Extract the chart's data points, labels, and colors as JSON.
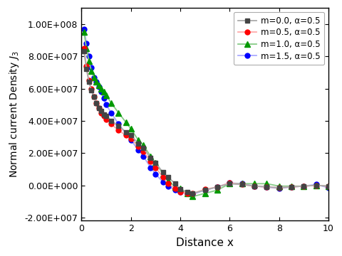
{
  "title": "",
  "xlabel": "Distance x",
  "ylabel": "Normal current Density $J_3$",
  "xlim": [
    0,
    10
  ],
  "ylim": [
    -22000000.0,
    110000000.0
  ],
  "yticks": [
    -20000000.0,
    0.0,
    20000000.0,
    40000000.0,
    60000000.0,
    80000000.0,
    100000000.0
  ],
  "xticks": [
    0,
    2,
    4,
    6,
    8,
    10
  ],
  "legend": [
    {
      "label": "m=0.0, α=0.5",
      "color": "#aaaaaa",
      "marker": "s",
      "mcolor": "#444444"
    },
    {
      "label": "m=0.5, α=0.5",
      "color": "#ffaaaa",
      "marker": "o",
      "mcolor": "#ff0000"
    },
    {
      "label": "m=1.0, α=0.5",
      "color": "#88cc88",
      "marker": "^",
      "mcolor": "#009900"
    },
    {
      "label": "m=1.5, α=0.5",
      "color": "#aaaaff",
      "marker": "o",
      "mcolor": "#0000ff"
    }
  ],
  "series": {
    "m00": {
      "x": [
        0.1,
        0.2,
        0.3,
        0.4,
        0.5,
        0.6,
        0.7,
        0.8,
        0.9,
        1.0,
        1.2,
        1.5,
        1.8,
        2.0,
        2.3,
        2.5,
        2.8,
        3.0,
        3.3,
        3.5,
        3.8,
        4.0,
        4.3,
        4.5,
        5.0,
        5.5,
        6.0,
        6.5,
        7.0,
        7.5,
        8.0,
        8.5,
        9.0,
        9.5,
        10.0
      ],
      "y": [
        83000000.0,
        72000000.0,
        64000000.0,
        59000000.0,
        55000000.0,
        51000000.0,
        48000000.0,
        46000000.0,
        44000000.0,
        43000000.0,
        40000000.0,
        37000000.0,
        33000000.0,
        31000000.0,
        26000000.0,
        23000000.0,
        17000000.0,
        14000000.0,
        8000000.0,
        5000000.0,
        1000000.0,
        -2500000.0,
        -4000000.0,
        -5000000.0,
        -3000000.0,
        -1000000.0,
        1000000.0,
        500000.0,
        -500000.0,
        -1000000.0,
        -1500000.0,
        -1000000.0,
        -500000.0,
        0,
        -500000.0
      ]
    },
    "m05": {
      "x": [
        0.1,
        0.2,
        0.3,
        0.4,
        0.5,
        0.6,
        0.7,
        0.8,
        0.9,
        1.0,
        1.2,
        1.5,
        1.8,
        2.0,
        2.3,
        2.5,
        2.8,
        3.0,
        3.3,
        3.5,
        3.8,
        4.0,
        4.3,
        4.5,
        5.0,
        5.5,
        6.0,
        6.5,
        7.0,
        7.5,
        8.0,
        8.5,
        9.0,
        9.5,
        10.0
      ],
      "y": [
        85000000.0,
        74000000.0,
        65000000.0,
        60000000.0,
        55000000.0,
        51000000.0,
        48000000.0,
        45000000.0,
        43000000.0,
        41000000.0,
        38000000.0,
        34000000.0,
        31000000.0,
        29000000.0,
        24000000.0,
        21000000.0,
        15000000.0,
        11000000.0,
        5000000.0,
        1000000.0,
        -2000000.0,
        -4000000.0,
        -5000000.0,
        -5000000.0,
        -2500000.0,
        -1000000.0,
        1500000.0,
        500000.0,
        -500000.0,
        -1000000.0,
        -1500000.0,
        -1000000.0,
        -500000.0,
        0,
        -500000.0
      ]
    },
    "m10": {
      "x": [
        0.1,
        0.2,
        0.3,
        0.4,
        0.5,
        0.6,
        0.7,
        0.8,
        0.9,
        1.0,
        1.2,
        1.5,
        1.8,
        2.0,
        2.3,
        2.5,
        2.8,
        3.0,
        3.3,
        3.5,
        3.8,
        4.0,
        4.3,
        4.5,
        5.0,
        5.5,
        6.0,
        6.5,
        7.0,
        7.5,
        8.0,
        8.5,
        9.0,
        9.5,
        10.0
      ],
      "y": [
        95000000.0,
        85000000.0,
        77000000.0,
        71000000.0,
        67000000.0,
        64000000.0,
        62000000.0,
        60000000.0,
        58000000.0,
        56000000.0,
        51000000.0,
        45000000.0,
        39000000.0,
        35000000.0,
        28000000.0,
        25000000.0,
        18000000.0,
        14000000.0,
        7000000.0,
        3000000.0,
        -1000000.0,
        -2000000.0,
        -5000000.0,
        -7000000.0,
        -5000000.0,
        -3000000.0,
        1000000.0,
        1000000.0,
        1000000.0,
        1000000.0,
        -500000.0,
        -500000.0,
        -500000.0,
        0,
        -500000.0
      ]
    },
    "m15": {
      "x": [
        0.1,
        0.2,
        0.3,
        0.4,
        0.5,
        0.6,
        0.7,
        0.8,
        0.9,
        1.0,
        1.2,
        1.5,
        1.8,
        2.0,
        2.3,
        2.5,
        2.8,
        3.0,
        3.3,
        3.5,
        3.8,
        4.0,
        4.3,
        4.5,
        5.0,
        5.5,
        6.0,
        6.5,
        7.0,
        7.5,
        8.0,
        8.5,
        9.0,
        9.5,
        10.0
      ],
      "y": [
        97000000.0,
        88000000.0,
        80000000.0,
        73000000.0,
        67000000.0,
        64000000.0,
        61000000.0,
        58000000.0,
        54000000.0,
        50000000.0,
        45000000.0,
        38000000.0,
        32000000.0,
        28000000.0,
        22000000.0,
        18000000.0,
        11000000.0,
        7000000.0,
        2000000.0,
        -500000.0,
        -3000000.0,
        -4000000.0,
        -5000000.0,
        -5500000.0,
        -3000000.0,
        -1000000.0,
        1500000.0,
        1000000.0,
        -500000.0,
        -1000000.0,
        -2000000.0,
        -1000000.0,
        -500000.0,
        500000.0,
        -1500000.0
      ]
    }
  },
  "background_color": "#ffffff",
  "legend_loc": "upper right"
}
